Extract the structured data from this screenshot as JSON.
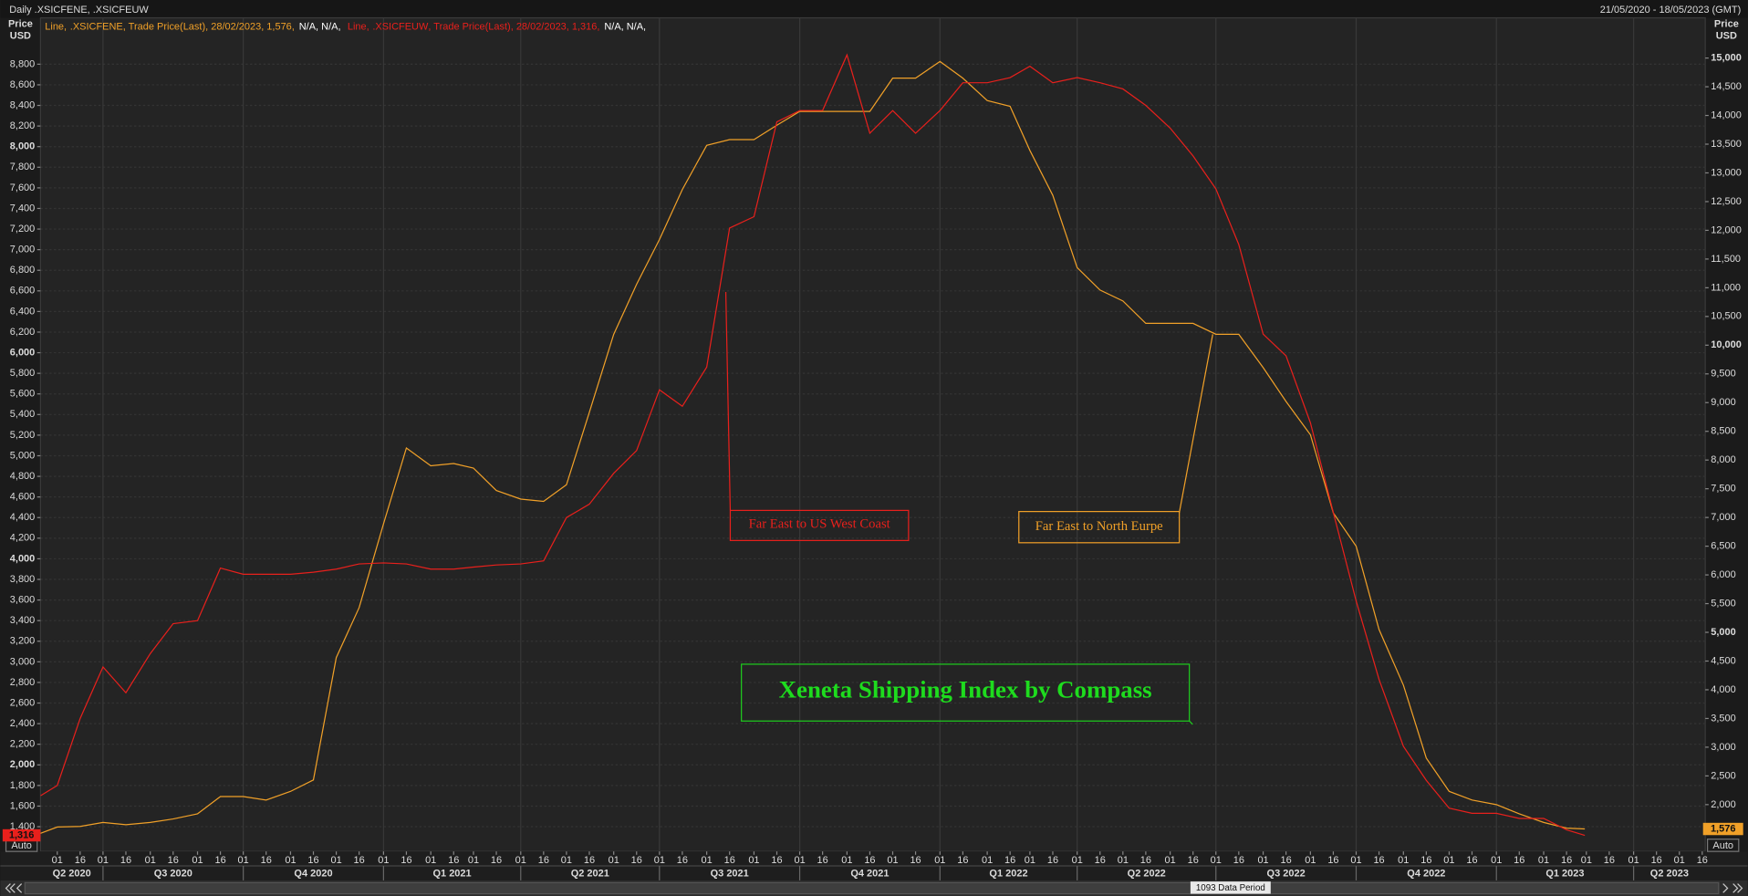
{
  "chart_data": {
    "type": "line",
    "header": "Daily .XSICFENE, .XSICFEUW",
    "range_text": "21/05/2020 - 18/05/2023 (GMT)",
    "title": "Xeneta Shipping Index by Compass",
    "annotations": [
      "Far East to US West Coast",
      "Far East to North Eurpe"
    ],
    "ylabel": "Price USD",
    "y2label": "Price USD",
    "auto_label": "Auto",
    "period_label": "1093 Data Period",
    "grid": true,
    "xlim": [
      "2020-05-21",
      "2023-05-18"
    ],
    "ylim": [
      1160,
      9250
    ],
    "y2lim": [
      1185,
      15700
    ],
    "x": [
      "2020-05-21",
      "2020-06-01",
      "2020-06-16",
      "2020-07-01",
      "2020-07-16",
      "2020-08-01",
      "2020-08-16",
      "2020-09-01",
      "2020-09-16",
      "2020-10-01",
      "2020-10-16",
      "2020-11-01",
      "2020-11-16",
      "2020-12-01",
      "2020-12-16",
      "2021-01-01",
      "2021-01-16",
      "2021-02-01",
      "2021-02-16",
      "2021-03-01",
      "2021-03-16",
      "2021-04-01",
      "2021-04-16",
      "2021-05-01",
      "2021-05-16",
      "2021-06-01",
      "2021-06-16",
      "2021-07-01",
      "2021-07-16",
      "2021-08-01",
      "2021-08-16",
      "2021-09-01",
      "2021-09-16",
      "2021-10-01",
      "2021-10-16",
      "2021-11-01",
      "2021-11-16",
      "2021-12-01",
      "2021-12-16",
      "2022-01-01",
      "2022-01-16",
      "2022-02-01",
      "2022-02-16",
      "2022-03-01",
      "2022-03-16",
      "2022-04-01",
      "2022-04-16",
      "2022-05-01",
      "2022-05-16",
      "2022-06-01",
      "2022-06-16",
      "2022-07-01",
      "2022-07-16",
      "2022-08-01",
      "2022-08-16",
      "2022-09-01",
      "2022-09-16",
      "2022-10-01",
      "2022-10-16",
      "2022-11-01",
      "2022-11-16",
      "2022-12-01",
      "2022-12-16",
      "2023-01-01",
      "2023-01-16",
      "2023-02-01",
      "2023-02-16",
      "2023-02-28"
    ],
    "series": [
      {
        "name": ".XSICFENE",
        "legend_kind": "Line,",
        "legend_detail": ", Trade Price(Last), 28/02/2023, 1,576,",
        "legend_extra": "N/A, N/A,",
        "color": "#f0a028",
        "axis": "y2",
        "last_label": "1,576",
        "values": [
          1500,
          1610,
          1620,
          1690,
          1650,
          1690,
          1750,
          1840,
          2140,
          2140,
          2080,
          2230,
          2430,
          4560,
          5430,
          6890,
          8210,
          7900,
          7940,
          7860,
          7470,
          7320,
          7280,
          7570,
          8830,
          10190,
          11060,
          11840,
          12710,
          13480,
          13580,
          13580,
          13830,
          14070,
          14070,
          14070,
          14070,
          14650,
          14650,
          14940,
          14650,
          14260,
          14160,
          13390,
          12610,
          11350,
          10960,
          10770,
          10380,
          10380,
          10380,
          10190,
          10190,
          9610,
          9020,
          8440,
          7080,
          6500,
          5050,
          4080,
          2810,
          2230,
          2080,
          2000,
          1840,
          1690,
          1590,
          1576
        ]
      },
      {
        "name": ".XSICFEUW",
        "legend_kind": "Line,",
        "legend_detail": ", Trade Price(Last), 28/02/2023, 1,316,",
        "legend_extra": "N/A, N/A,",
        "color": "#e8201c",
        "last_label": "1,316",
        "values": [
          1700,
          1800,
          2450,
          2950,
          2700,
          3080,
          3370,
          3400,
          3910,
          3850,
          3850,
          3850,
          3870,
          3900,
          3950,
          3960,
          3950,
          3900,
          3900,
          3920,
          3940,
          3950,
          3980,
          4400,
          4530,
          4830,
          5050,
          5640,
          5480,
          5860,
          7210,
          7320,
          8240,
          8350,
          8350,
          8890,
          8130,
          8350,
          8130,
          8350,
          8620,
          8620,
          8670,
          8780,
          8620,
          8670,
          8620,
          8560,
          8400,
          8180,
          7910,
          7590,
          7050,
          6180,
          5970,
          5320,
          4450,
          3590,
          2830,
          2180,
          1850,
          1580,
          1530,
          1530,
          1480,
          1480,
          1370,
          1316
        ]
      }
    ],
    "yticks": [
      {
        "value": 1400,
        "label": "1,400"
      },
      {
        "value": 1600,
        "label": "1,600"
      },
      {
        "value": 1800,
        "label": "1,800"
      },
      {
        "value": 2000,
        "label": "2,000"
      },
      {
        "value": 2200,
        "label": "2,200"
      },
      {
        "value": 2400,
        "label": "2,400"
      },
      {
        "value": 2600,
        "label": "2,600"
      },
      {
        "value": 2800,
        "label": "2,800"
      },
      {
        "value": 3000,
        "label": "3,000"
      },
      {
        "value": 3200,
        "label": "3,200"
      },
      {
        "value": 3400,
        "label": "3,400"
      },
      {
        "value": 3600,
        "label": "3,600"
      },
      {
        "value": 3800,
        "label": "3,800"
      },
      {
        "value": 4000,
        "label": "4,000"
      },
      {
        "value": 4200,
        "label": "4,200"
      },
      {
        "value": 4400,
        "label": "4,400"
      },
      {
        "value": 4600,
        "label": "4,600"
      },
      {
        "value": 4800,
        "label": "4,800"
      },
      {
        "value": 5000,
        "label": "5,000"
      },
      {
        "value": 5200,
        "label": "5,200"
      },
      {
        "value": 5400,
        "label": "5,400"
      },
      {
        "value": 5600,
        "label": "5,600"
      },
      {
        "value": 5800,
        "label": "5,800"
      },
      {
        "value": 6000,
        "label": "6,000"
      },
      {
        "value": 6200,
        "label": "6,200"
      },
      {
        "value": 6400,
        "label": "6,400"
      },
      {
        "value": 6600,
        "label": "6,600"
      },
      {
        "value": 6800,
        "label": "6,800"
      },
      {
        "value": 7000,
        "label": "7,000"
      },
      {
        "value": 7200,
        "label": "7,200"
      },
      {
        "value": 7400,
        "label": "7,400"
      },
      {
        "value": 7600,
        "label": "7,600"
      },
      {
        "value": 7800,
        "label": "7,800"
      },
      {
        "value": 8000,
        "label": "8,000"
      },
      {
        "value": 8200,
        "label": "8,200"
      },
      {
        "value": 8400,
        "label": "8,400"
      },
      {
        "value": 8600,
        "label": "8,600"
      },
      {
        "value": 8800,
        "label": "8,800"
      }
    ],
    "y2ticks": [
      {
        "value": 2000,
        "label": "2,000"
      },
      {
        "value": 2500,
        "label": "2,500"
      },
      {
        "value": 3000,
        "label": "3,000"
      },
      {
        "value": 3500,
        "label": "3,500"
      },
      {
        "value": 4000,
        "label": "4,000"
      },
      {
        "value": 4500,
        "label": "4,500"
      },
      {
        "value": 5000,
        "label": "5,000"
      },
      {
        "value": 5500,
        "label": "5,500"
      },
      {
        "value": 6000,
        "label": "6,000"
      },
      {
        "value": 6500,
        "label": "6,500"
      },
      {
        "value": 7000,
        "label": "7,000"
      },
      {
        "value": 7500,
        "label": "7,500"
      },
      {
        "value": 8000,
        "label": "8,000"
      },
      {
        "value": 8500,
        "label": "8,500"
      },
      {
        "value": 9000,
        "label": "9,000"
      },
      {
        "value": 9500,
        "label": "9,500"
      },
      {
        "value": 10000,
        "label": "10,000"
      },
      {
        "value": 10500,
        "label": "10,500"
      },
      {
        "value": 11000,
        "label": "11,000"
      },
      {
        "value": 11500,
        "label": "11,500"
      },
      {
        "value": 12000,
        "label": "12,000"
      },
      {
        "value": 12500,
        "label": "12,500"
      },
      {
        "value": 13000,
        "label": "13,000"
      },
      {
        "value": 13500,
        "label": "13,500"
      },
      {
        "value": 14000,
        "label": "14,000"
      },
      {
        "value": 14500,
        "label": "14,500"
      },
      {
        "value": 15000,
        "label": "15,000"
      }
    ],
    "xticks": [
      {
        "value": "2020-06-01",
        "label": "01"
      },
      {
        "value": "2020-06-16",
        "label": "16"
      },
      {
        "value": "2020-07-01",
        "label": "01"
      },
      {
        "value": "2020-07-16",
        "label": "16"
      },
      {
        "value": "2020-08-01",
        "label": "01"
      },
      {
        "value": "2020-08-16",
        "label": "16"
      },
      {
        "value": "2020-09-01",
        "label": "01"
      },
      {
        "value": "2020-09-16",
        "label": "16"
      },
      {
        "value": "2020-10-01",
        "label": "01"
      },
      {
        "value": "2020-10-16",
        "label": "16"
      },
      {
        "value": "2020-11-01",
        "label": "01"
      },
      {
        "value": "2020-11-16",
        "label": "16"
      },
      {
        "value": "2020-12-01",
        "label": "01"
      },
      {
        "value": "2020-12-16",
        "label": "16"
      },
      {
        "value": "2021-01-01",
        "label": "01"
      },
      {
        "value": "2021-01-16",
        "label": "16"
      },
      {
        "value": "2021-02-01",
        "label": "01"
      },
      {
        "value": "2021-02-16",
        "label": "16"
      },
      {
        "value": "2021-03-01",
        "label": "01"
      },
      {
        "value": "2021-03-16",
        "label": "16"
      },
      {
        "value": "2021-04-01",
        "label": "01"
      },
      {
        "value": "2021-04-16",
        "label": "16"
      },
      {
        "value": "2021-05-01",
        "label": "01"
      },
      {
        "value": "2021-05-16",
        "label": "16"
      },
      {
        "value": "2021-06-01",
        "label": "01"
      },
      {
        "value": "2021-06-16",
        "label": "16"
      },
      {
        "value": "2021-07-01",
        "label": "01"
      },
      {
        "value": "2021-07-16",
        "label": "16"
      },
      {
        "value": "2021-08-01",
        "label": "01"
      },
      {
        "value": "2021-08-16",
        "label": "16"
      },
      {
        "value": "2021-09-01",
        "label": "01"
      },
      {
        "value": "2021-09-16",
        "label": "16"
      },
      {
        "value": "2021-10-01",
        "label": "01"
      },
      {
        "value": "2021-10-16",
        "label": "16"
      },
      {
        "value": "2021-11-01",
        "label": "01"
      },
      {
        "value": "2021-11-16",
        "label": "16"
      },
      {
        "value": "2021-12-01",
        "label": "01"
      },
      {
        "value": "2021-12-16",
        "label": "16"
      },
      {
        "value": "2022-01-01",
        "label": "01"
      },
      {
        "value": "2022-01-16",
        "label": "16"
      },
      {
        "value": "2022-02-01",
        "label": "01"
      },
      {
        "value": "2022-02-16",
        "label": "16"
      },
      {
        "value": "2022-03-01",
        "label": "01"
      },
      {
        "value": "2022-03-16",
        "label": "16"
      },
      {
        "value": "2022-04-01",
        "label": "01"
      },
      {
        "value": "2022-04-16",
        "label": "16"
      },
      {
        "value": "2022-05-01",
        "label": "01"
      },
      {
        "value": "2022-05-16",
        "label": "16"
      },
      {
        "value": "2022-06-01",
        "label": "01"
      },
      {
        "value": "2022-06-16",
        "label": "16"
      },
      {
        "value": "2022-07-01",
        "label": "01"
      },
      {
        "value": "2022-07-16",
        "label": "16"
      },
      {
        "value": "2022-08-01",
        "label": "01"
      },
      {
        "value": "2022-08-16",
        "label": "16"
      },
      {
        "value": "2022-09-01",
        "label": "01"
      },
      {
        "value": "2022-09-16",
        "label": "16"
      },
      {
        "value": "2022-10-01",
        "label": "01"
      },
      {
        "value": "2022-10-16",
        "label": "16"
      },
      {
        "value": "2022-11-01",
        "label": "01"
      },
      {
        "value": "2022-11-16",
        "label": "16"
      },
      {
        "value": "2022-12-01",
        "label": "01"
      },
      {
        "value": "2022-12-16",
        "label": "16"
      },
      {
        "value": "2023-01-01",
        "label": "01"
      },
      {
        "value": "2023-01-16",
        "label": "16"
      },
      {
        "value": "2023-02-01",
        "label": "01"
      },
      {
        "value": "2023-02-16",
        "label": "16"
      },
      {
        "value": "2023-03-01",
        "label": "01"
      },
      {
        "value": "2023-03-16",
        "label": "16"
      },
      {
        "value": "2023-04-01",
        "label": "01"
      },
      {
        "value": "2023-04-16",
        "label": "16"
      },
      {
        "value": "2023-05-01",
        "label": "01"
      },
      {
        "value": "2023-05-16",
        "label": "16"
      }
    ],
    "x_groups": [
      {
        "value": "2020-04-01",
        "label": "Q2 2020"
      },
      {
        "value": "2020-07-01",
        "label": "Q3 2020"
      },
      {
        "value": "2020-10-01",
        "label": "Q4 2020"
      },
      {
        "value": "2021-01-01",
        "label": "Q1 2021"
      },
      {
        "value": "2021-04-01",
        "label": "Q2 2021"
      },
      {
        "value": "2021-07-01",
        "label": "Q3 2021"
      },
      {
        "value": "2021-10-01",
        "label": "Q4 2021"
      },
      {
        "value": "2022-01-01",
        "label": "Q1 2022"
      },
      {
        "value": "2022-04-01",
        "label": "Q2 2022"
      },
      {
        "value": "2022-07-01",
        "label": "Q3 2022"
      },
      {
        "value": "2022-10-01",
        "label": "Q4 2022"
      },
      {
        "value": "2023-01-01",
        "label": "Q1 2023"
      },
      {
        "value": "2023-04-01",
        "label": "Q2 2023"
      }
    ]
  }
}
